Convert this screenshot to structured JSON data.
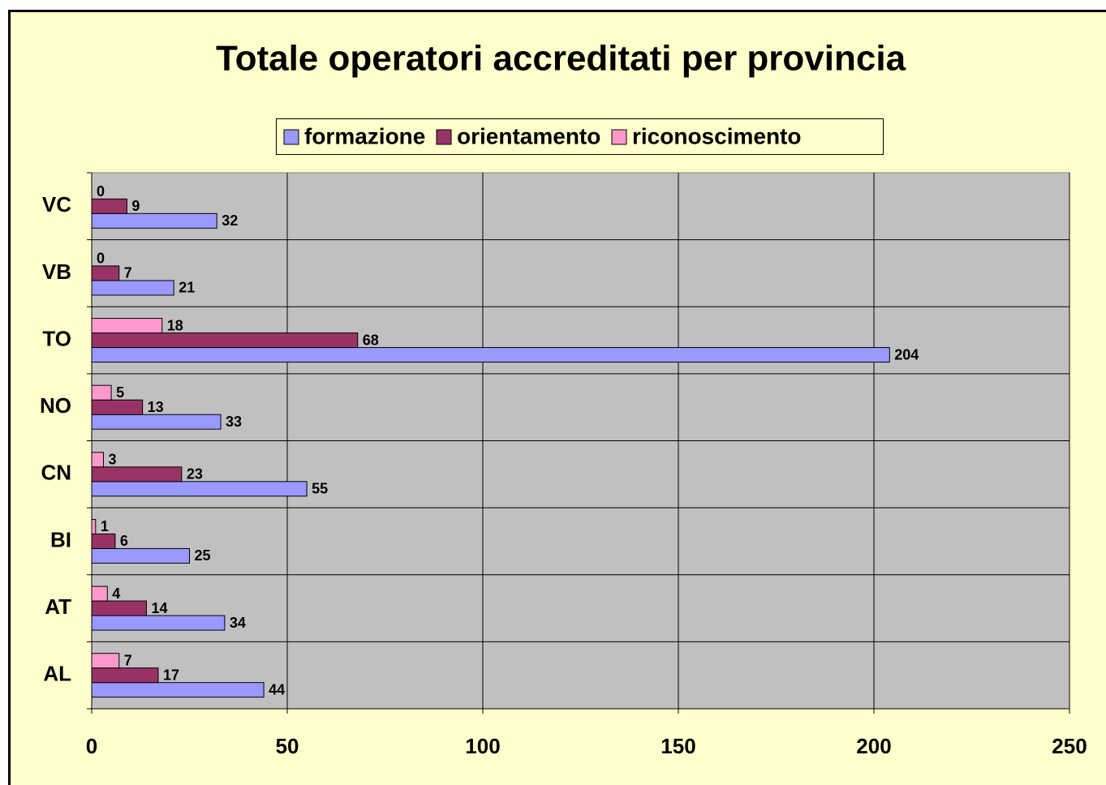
{
  "chart_data": {
    "type": "barh",
    "title": "Totale operatori accreditati per provincia",
    "categories": [
      "AL",
      "AT",
      "BI",
      "CN",
      "NO",
      "TO",
      "VB",
      "VC"
    ],
    "series": [
      {
        "name": "formazione",
        "color": "#9999ff",
        "values": [
          44,
          34,
          25,
          55,
          33,
          204,
          21,
          32
        ]
      },
      {
        "name": "orientamento",
        "color": "#993366",
        "values": [
          17,
          14,
          6,
          23,
          13,
          68,
          7,
          9
        ]
      },
      {
        "name": "riconoscimento",
        "color": "#ff99cc",
        "values": [
          7,
          4,
          1,
          3,
          5,
          18,
          0,
          0
        ]
      }
    ],
    "xlim": [
      0,
      250
    ],
    "xticks": [
      0,
      50,
      100,
      150,
      200,
      250
    ],
    "grid": true,
    "legend": "top"
  }
}
